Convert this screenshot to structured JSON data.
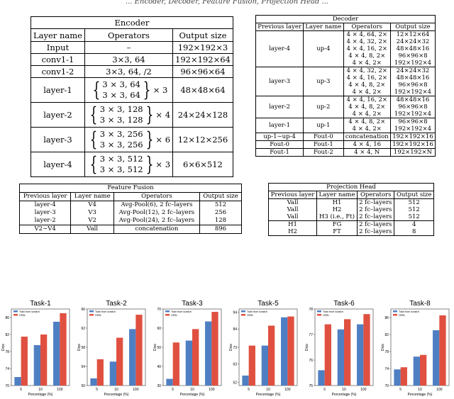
{
  "caption": "... Encoder, Decoder, Feature Fusion, Projection Head ...",
  "encoder": {
    "title": "Encoder",
    "headers": [
      "Layer name",
      "Operators",
      "Output size"
    ],
    "rows": [
      {
        "name": "Input",
        "op": "–",
        "out": "192×192×3"
      },
      {
        "name": "conv1-1",
        "op": "3×3, 64",
        "out": "192×192×64"
      },
      {
        "name": "conv1-2",
        "op": "3×3, 64, /2",
        "out": "96×96×64"
      },
      {
        "name": "layer-1",
        "op1": "3 × 3, 64",
        "op2": "3 × 3, 64",
        "mult": "× 3",
        "out": "48×48×64"
      },
      {
        "name": "layer-2",
        "op1": "3 × 3, 128",
        "op2": "3 × 3, 128",
        "mult": "× 4",
        "out": "24×24×128"
      },
      {
        "name": "layer-3",
        "op1": "3 × 3, 256",
        "op2": "3 × 3, 256",
        "mult": "× 6",
        "out": "12×12×256"
      },
      {
        "name": "layer-4",
        "op1": "3 × 3, 512",
        "op2": "3 × 3, 512",
        "mult": "× 3",
        "out": "6×6×512"
      }
    ]
  },
  "decoder": {
    "title": "Decoder",
    "headers": [
      "Previous layer",
      "Layer name",
      "Operators",
      "Output size"
    ],
    "groups": [
      {
        "prev": "layer-4",
        "name": "up-4",
        "ops": [
          "4 × 4, 64, 2×",
          "4 × 4, 32, 2×",
          "4 × 4, 16, 2×",
          "4 × 4, 8, 2×",
          "4 × 4, 2×"
        ],
        "outs": [
          "12×12×64",
          "24×24×32",
          "48×48×16",
          "96×96×8",
          "192×192×4"
        ]
      },
      {
        "prev": "layer-3",
        "name": "up-3",
        "ops": [
          "4 × 4, 32, 2×",
          "4 × 4, 16, 2×",
          "4 × 4, 8, 2×",
          "4 × 4, 2×"
        ],
        "outs": [
          "24×24×32",
          "48×48×16",
          "96×96×8",
          "192×192×4"
        ]
      },
      {
        "prev": "layer-2",
        "name": "up-2",
        "ops": [
          "4 × 4, 16, 2×",
          "4 × 4, 8, 2×",
          "4 × 4, 2×"
        ],
        "outs": [
          "48×48×16",
          "96×96×8",
          "192×192×4"
        ]
      },
      {
        "prev": "layer-1",
        "name": "up-1",
        "ops": [
          "4 × 4, 8, 2×",
          "4 × 4, 2×"
        ],
        "outs": [
          "96×96×8",
          "192×192×4"
        ]
      }
    ],
    "tail": [
      {
        "prev": "up-1∼up-4",
        "name": "Fout-0",
        "op": "concatenation",
        "out": "192×192×16"
      },
      {
        "prev": "Fout-0",
        "name": "Fout-1",
        "op": "4 × 4, 16",
        "out": "192×192×16"
      },
      {
        "prev": "Fout-1",
        "name": "Fout-2",
        "op": "4 × 4, N",
        "out": "192×192×N"
      }
    ]
  },
  "fusion": {
    "title": "Feature Fusion",
    "headers": [
      "Previous layer",
      "Layer name",
      "Operators",
      "Output size"
    ],
    "rows": [
      {
        "prev": "layer-4",
        "name": "V4",
        "op": "Avg-Pool(6), 2 fc–layers",
        "out": "512"
      },
      {
        "prev": "layer-3",
        "name": "V3",
        "op": "Avg-Pool(12), 2 fc–layers",
        "out": "256"
      },
      {
        "prev": "layer-2",
        "name": "V2",
        "op": "Avg-Pool(24), 2 fc–layers",
        "out": "128"
      },
      {
        "prev": "V2∼V4",
        "name": "Vall",
        "op": "concatenation",
        "out": "896"
      }
    ]
  },
  "projection": {
    "title": "Projection Head",
    "headers": [
      "Previous layer",
      "Layer name",
      "Operators",
      "Output size"
    ],
    "rows": [
      {
        "prev": "Vall",
        "name": "H1",
        "op": "2 fc–layers",
        "out": "512"
      },
      {
        "prev": "Vall",
        "name": "H2",
        "op": "2 fc–layers",
        "out": "512"
      },
      {
        "prev": "Vall",
        "name": "H3 (i.e., Ft)",
        "op": "2 fc–layers",
        "out": "512"
      },
      {
        "prev": "H1",
        "name": "FG",
        "op": "2 fc–layers",
        "out": "4"
      },
      {
        "prev": "H2",
        "name": "FT",
        "op": "2 fc–layers",
        "out": "8"
      }
    ]
  },
  "chart_data": [
    {
      "type": "bar",
      "title": "Task-1",
      "categories": [
        "5",
        "10",
        "100"
      ],
      "xlabel": "Percentage (%)",
      "ylabel": "Dice",
      "ylim": [
        70,
        88
      ],
      "yticks": [
        "70",
        "74",
        "78",
        "82",
        "86"
      ],
      "series": [
        {
          "name": "Train from scratch",
          "values": [
            72.0,
            79.5,
            85.0
          ]
        },
        {
          "name": "HSSL",
          "values": [
            81.5,
            82.0,
            87.0
          ]
        }
      ]
    },
    {
      "type": "bar",
      "title": "Task-2",
      "categories": [
        "5",
        "10",
        "100"
      ],
      "xlabel": "Percentage (%)",
      "ylabel": "Dice",
      "ylim": [
        50,
        66
      ],
      "yticks": [
        "50",
        "54",
        "58",
        "62",
        "66"
      ],
      "series": [
        {
          "name": "Train from scratch",
          "values": [
            51.5,
            55.0,
            61.8
          ]
        },
        {
          "name": "HSSL",
          "values": [
            55.5,
            60.0,
            64.8
          ]
        }
      ]
    },
    {
      "type": "bar",
      "title": "Task-3",
      "categories": [
        "5",
        "10",
        "100"
      ],
      "xlabel": "Percentage (%)",
      "ylabel": "Dice",
      "ylim": [
        30,
        70
      ],
      "yticks": [
        "30",
        "40",
        "50",
        "60",
        "70"
      ],
      "series": [
        {
          "name": "Train from scratch",
          "values": [
            33.5,
            53.5,
            63.5
          ]
        },
        {
          "name": "HSSL",
          "values": [
            52.5,
            59.5,
            68.5
          ]
        }
      ]
    },
    {
      "type": "bar",
      "title": "Task-5",
      "categories": [
        "5",
        "10",
        "100"
      ],
      "xlabel": "Percentage (%)",
      "ylabel": "Dice",
      "ylim": [
        50,
        96
      ],
      "yticks": [
        "52",
        "63",
        "73",
        "84",
        "94"
      ],
      "series": [
        {
          "name": "Train from scratch",
          "values": [
            56.0,
            74.0,
            91.0
          ]
        },
        {
          "name": "HSSL",
          "values": [
            74.0,
            86.0,
            91.5
          ]
        }
      ]
    },
    {
      "type": "bar",
      "title": "Task-6",
      "categories": [
        "5",
        "10",
        "100"
      ],
      "xlabel": "Percentage (%)",
      "ylabel": "Dice",
      "ylim": [
        75,
        78
      ],
      "yticks": [
        "75",
        "76",
        "77",
        "78"
      ],
      "series": [
        {
          "name": "Train from scratch",
          "values": [
            75.6,
            77.2,
            77.4
          ]
        },
        {
          "name": "HSSL",
          "values": [
            77.4,
            77.6,
            77.8
          ]
        }
      ]
    },
    {
      "type": "bar",
      "title": "Task-8",
      "categories": [
        "5",
        "10",
        "100"
      ],
      "xlabel": "Percentage (%)",
      "ylabel": "Dice",
      "ylim": [
        70,
        88
      ],
      "yticks": [
        "70",
        "74",
        "78",
        "82",
        "86"
      ],
      "series": [
        {
          "name": "Train from scratch",
          "values": [
            73.8,
            76.8,
            83.0
          ]
        },
        {
          "name": "HSSL",
          "values": [
            74.3,
            77.2,
            86.5
          ]
        }
      ]
    }
  ],
  "colors": {
    "scratch": "#4f7fc3",
    "hssl": "#e05040"
  }
}
